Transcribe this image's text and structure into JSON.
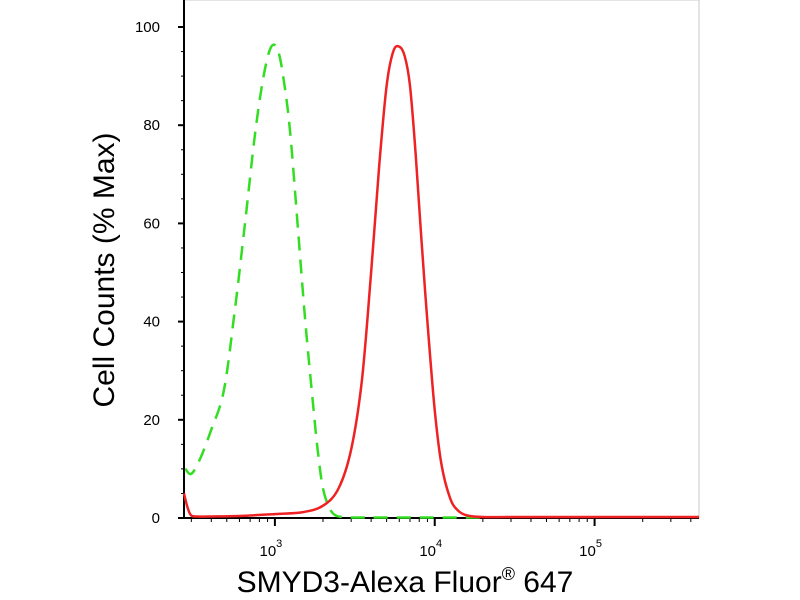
{
  "chart_data": {
    "type": "line",
    "xlabel": "SMYD3-Alexa Fluor® 647",
    "xlabel_main": "SMYD3-Alexa Fluor",
    "xlabel_sup": "®",
    "xlabel_tail": " 647",
    "ylabel": "Cell Counts (% Max)",
    "x_scale": "log",
    "xlim": [
      270,
      450000
    ],
    "ylim": [
      0,
      100
    ],
    "y_ticks": [
      "0",
      "20",
      "40",
      "60",
      "80",
      "100"
    ],
    "x_ticks": [
      {
        "base": "10",
        "exp": "3",
        "value": 1000
      },
      {
        "base": "10",
        "exp": "4",
        "value": 10000
      },
      {
        "base": "10",
        "exp": "5",
        "value": 100000
      }
    ],
    "grid": false,
    "series": [
      {
        "color": "#33dd22",
        "style": "dashed",
        "x": [
          275,
          300,
          340,
          400,
          480,
          560,
          650,
          750,
          850,
          950,
          1050,
          1150,
          1250,
          1400,
          1550,
          1700,
          1850,
          2000,
          2200,
          2400,
          2700,
          3000,
          3500,
          4000,
          5000,
          7000,
          10000,
          20000
        ],
        "y": [
          10,
          9,
          12,
          18,
          26,
          42,
          60,
          78,
          90,
          96,
          95,
          88,
          78,
          58,
          40,
          26,
          14,
          6,
          2,
          0.5,
          0.2,
          0.1,
          0.1,
          0.1,
          0.1,
          0.1,
          0.1,
          0.1
        ]
      },
      {
        "color": "#ee2222",
        "style": "solid",
        "x": [
          270,
          285,
          300,
          330,
          400,
          600,
          1000,
          1500,
          2000,
          2500,
          3000,
          3500,
          4000,
          4500,
          5000,
          5500,
          6000,
          6500,
          7000,
          7600,
          8200,
          9000,
          10000,
          11000,
          12500,
          14000,
          16000,
          20000,
          30000,
          60000,
          150000,
          450000
        ],
        "y": [
          5,
          2,
          0.5,
          0.3,
          0.3,
          0.4,
          0.8,
          1.2,
          2.5,
          6,
          14,
          28,
          50,
          72,
          88,
          95,
          96,
          94,
          88,
          74,
          58,
          40,
          22,
          11,
          4,
          1.5,
          0.5,
          0.2,
          0.2,
          0.2,
          0.2,
          0.2
        ]
      }
    ]
  },
  "colors": {
    "axis": "#000000",
    "frame": "#c8c8c8"
  }
}
